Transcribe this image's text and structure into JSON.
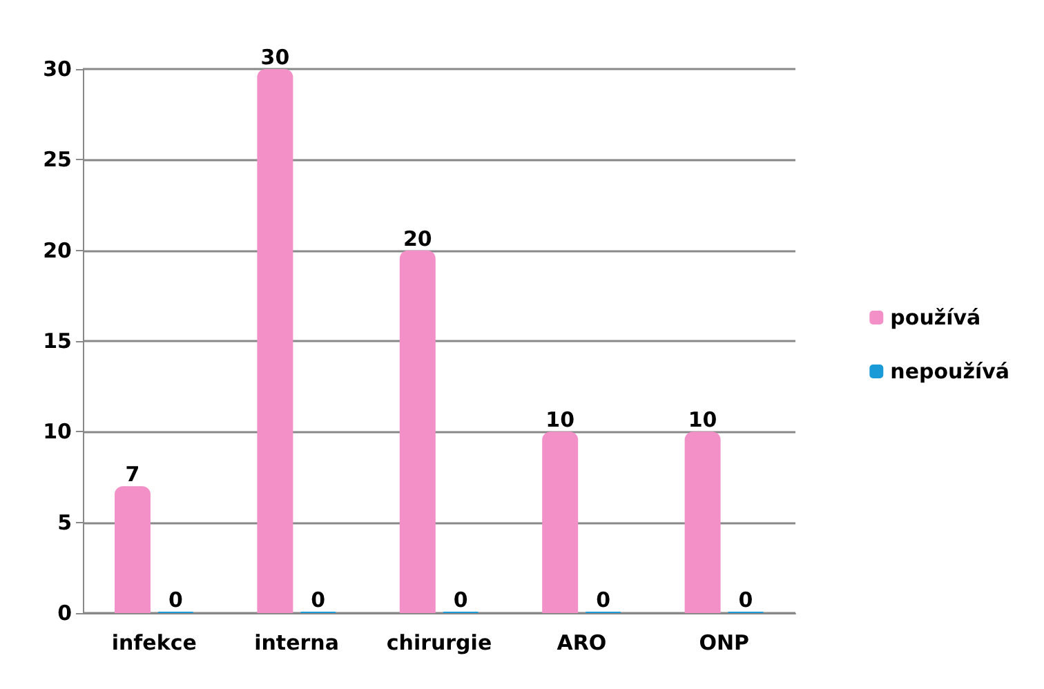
{
  "chart_data": {
    "type": "bar",
    "categories": [
      "infekce",
      "interna",
      "chirurgie",
      "ARO",
      "ONP"
    ],
    "series": [
      {
        "name": "používá",
        "color": "#f490c8",
        "values": [
          7,
          30,
          20,
          10,
          10
        ]
      },
      {
        "name": "nepoužívá",
        "color": "#1a9ad6",
        "values": [
          0,
          0,
          0,
          0,
          0
        ]
      }
    ],
    "ylim": [
      0,
      30
    ],
    "yticks": [
      0,
      5,
      10,
      15,
      20,
      25,
      30
    ],
    "grid": "y",
    "legend": "right",
    "data_labels": true
  }
}
